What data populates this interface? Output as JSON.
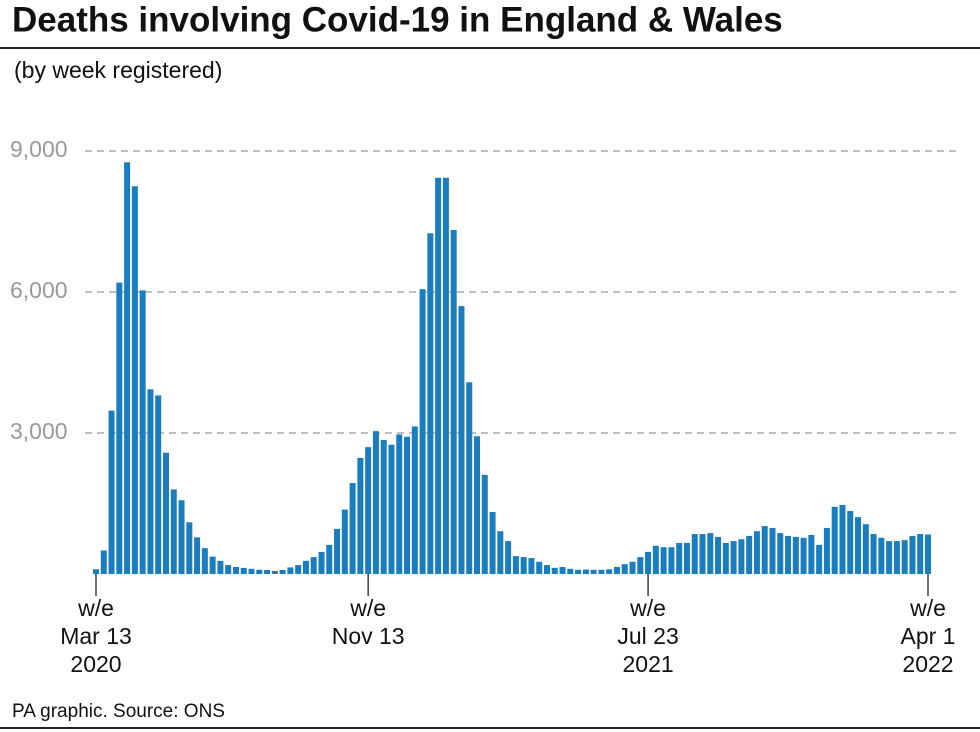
{
  "chart_data": {
    "type": "bar",
    "title": "Deaths involving Covid-19 in England & Wales",
    "subtitle": "(by week registered)",
    "source": "PA graphic. Source: ONS",
    "color": "#1a7dc0",
    "grid": true,
    "ylim": [
      0,
      9000
    ],
    "yticks": [
      {
        "value": 3000,
        "label": "3,000"
      },
      {
        "value": 6000,
        "label": "6,000"
      },
      {
        "value": 9000,
        "label": "9,000"
      }
    ],
    "categories": [
      "w/e\nMar 13\n2020",
      null,
      null,
      null,
      null,
      null,
      null,
      null,
      null,
      null,
      null,
      null,
      null,
      null,
      null,
      null,
      null,
      null,
      null,
      null,
      null,
      null,
      null,
      null,
      null,
      null,
      null,
      null,
      null,
      null,
      null,
      null,
      null,
      null,
      null,
      "w/e\nNov 13",
      null,
      null,
      null,
      null,
      null,
      null,
      null,
      null,
      null,
      null,
      null,
      null,
      null,
      null,
      null,
      null,
      null,
      null,
      null,
      null,
      null,
      null,
      null,
      null,
      null,
      null,
      null,
      null,
      null,
      null,
      null,
      null,
      null,
      null,
      null,
      "w/e\nJul 23\n2021",
      null,
      null,
      null,
      null,
      null,
      null,
      null,
      null,
      null,
      null,
      null,
      null,
      null,
      null,
      null,
      null,
      null,
      null,
      null,
      null,
      null,
      null,
      null,
      null,
      null,
      null,
      null,
      null,
      null,
      null,
      null,
      null,
      null,
      null,
      null,
      "w/e\nApr 1\n2022"
    ],
    "values": [
      100,
      500,
      3475,
      6200,
      8760,
      8250,
      6035,
      3930,
      3800,
      2580,
      1800,
      1570,
      1100,
      780,
      550,
      370,
      280,
      190,
      150,
      130,
      110,
      90,
      85,
      65,
      85,
      140,
      190,
      280,
      360,
      470,
      620,
      960,
      1370,
      1935,
      2470,
      2700,
      3040,
      2850,
      2750,
      2970,
      2920,
      3140,
      6060,
      7250,
      8430,
      8430,
      7320,
      5700,
      4080,
      2930,
      2110,
      1320,
      910,
      700,
      380,
      360,
      340,
      260,
      190,
      130,
      150,
      110,
      90,
      95,
      90,
      90,
      100,
      150,
      210,
      260,
      360,
      470,
      600,
      570,
      570,
      660,
      660,
      850,
      850,
      870,
      790,
      660,
      700,
      740,
      810,
      910,
      1020,
      980,
      870,
      810,
      790,
      770,
      830,
      620,
      980,
      1430,
      1470,
      1340,
      1210,
      1060,
      850,
      770,
      700,
      700,
      720,
      810,
      850,
      840
    ]
  }
}
